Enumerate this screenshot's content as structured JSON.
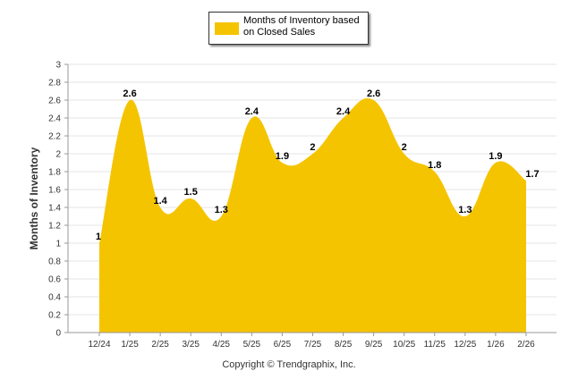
{
  "chart_data": {
    "type": "area",
    "series": [
      {
        "name": "Months of Inventory based on Closed Sales",
        "values": [
          1,
          2.6,
          1.4,
          1.5,
          1.3,
          2.4,
          1.9,
          2,
          2.4,
          2.6,
          2,
          1.8,
          1.3,
          1.9,
          1.7
        ]
      }
    ],
    "categories": [
      "12/24",
      "1/25",
      "2/25",
      "3/25",
      "4/25",
      "5/25",
      "6/25",
      "7/25",
      "8/25",
      "9/25",
      "10/25",
      "11/25",
      "12/25",
      "1/26",
      "2/26"
    ],
    "data_labels": [
      "1",
      "2.6",
      "1.4",
      "1.5",
      "1.3",
      "2.4",
      "1.9",
      "2",
      "2.4",
      "2.6",
      "2",
      "1.8",
      "1.3",
      "1.9",
      "1.7"
    ],
    "ylabel": "Months of Inventory",
    "xlabel": "",
    "ylim": [
      0,
      3
    ],
    "yticks": [
      "0",
      "0.2",
      "0.4",
      "0.6",
      "0.8",
      "1",
      "1.2",
      "1.4",
      "1.6",
      "1.8",
      "2",
      "2.2",
      "2.4",
      "2.6",
      "2.8",
      "3"
    ],
    "grid": true,
    "legend_position": "top-center",
    "fill_color": "#f5c400"
  },
  "legend": {
    "label": "Months of Inventory based on Closed Sales"
  },
  "footer": {
    "copyright": "Copyright © Trendgraphix, Inc."
  }
}
